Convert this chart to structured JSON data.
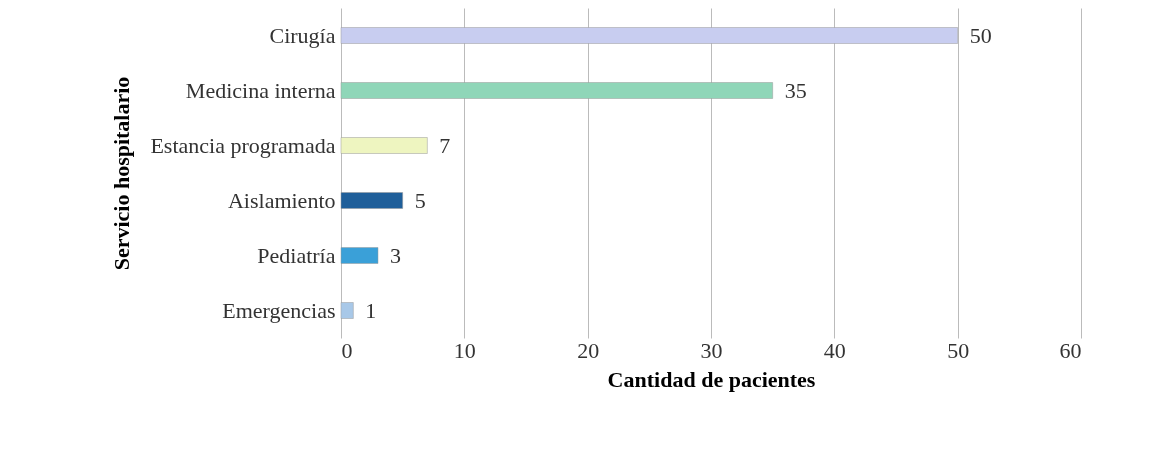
{
  "chart_data": {
    "type": "bar",
    "orientation": "horizontal",
    "xlabel": "Cantidad de pacientes",
    "ylabel": "Servicio hospitalario",
    "categories": [
      "Cirugía",
      "Medicina interna",
      "Estancia programada",
      "Aislamiento",
      "Pediatría",
      "Emergencias"
    ],
    "values": [
      50,
      35,
      7,
      5,
      3,
      1
    ],
    "colors": [
      "#c8cdf0",
      "#8fd6b8",
      "#eef5c0",
      "#1f5f9a",
      "#3aa0d8",
      "#a8c8e8"
    ],
    "xlim": [
      0,
      60
    ],
    "xticks": [
      0,
      10,
      20,
      30,
      40,
      50,
      60
    ],
    "grid": "x",
    "data_labels": true
  }
}
